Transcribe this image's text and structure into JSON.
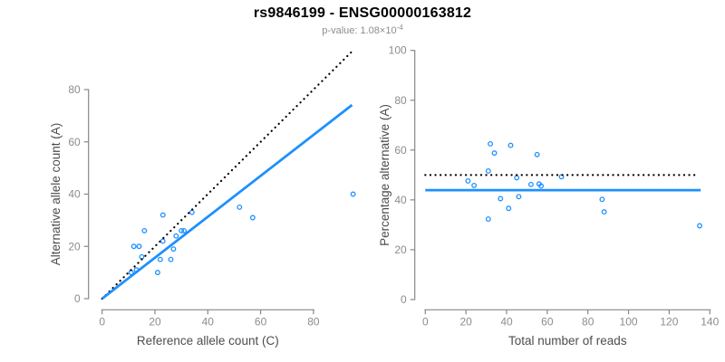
{
  "figure": {
    "title": "rs9846199 - ENSG00000163812",
    "subtitle_prefix": "p-value: 1.08×10",
    "subtitle_exponent": "-4"
  },
  "colors": {
    "accent_blue": "#1E90FF",
    "dotted_black": "#000000",
    "axis_gray": "#878787",
    "tick_label_gray": "#8C8C8C",
    "axis_title_gray": "#4d4d4d",
    "subtitle_gray": "#8C8C8C"
  },
  "chart_data": [
    {
      "type": "scatter",
      "name": "allele-counts",
      "xlabel": "Reference allele count (C)",
      "ylabel": "Alternative allele count (A)",
      "xlim": [
        0,
        96
      ],
      "ylim": [
        0,
        96
      ],
      "xticks": [
        0,
        20,
        40,
        60,
        80
      ],
      "yticks": [
        0,
        20,
        40,
        60,
        80
      ],
      "grid": false,
      "legend": "none",
      "points": [
        [
          11,
          10
        ],
        [
          13,
          11
        ],
        [
          12,
          20
        ],
        [
          14,
          20
        ],
        [
          15,
          16
        ],
        [
          16,
          26
        ],
        [
          21,
          10
        ],
        [
          22,
          15
        ],
        [
          23,
          22
        ],
        [
          23,
          32
        ],
        [
          26,
          15
        ],
        [
          27,
          19
        ],
        [
          28,
          24
        ],
        [
          30,
          26
        ],
        [
          31,
          26
        ],
        [
          34,
          33
        ],
        [
          52,
          35
        ],
        [
          57,
          31
        ],
        [
          95,
          40
        ]
      ],
      "lines": [
        {
          "name": "identity-line",
          "style": "dotted",
          "color": "#000000",
          "from": [
            0,
            0
          ],
          "to": [
            95,
            95
          ]
        },
        {
          "name": "fit-line",
          "style": "solid",
          "color": "#1E90FF",
          "from": [
            0,
            0
          ],
          "to": [
            94.6,
            74.1
          ]
        }
      ]
    },
    {
      "type": "scatter",
      "name": "percentage-vs-reads",
      "xlabel": "Total number of reads",
      "ylabel": "Percentage alternative (A)",
      "xlim": [
        0,
        141
      ],
      "ylim": [
        0,
        100
      ],
      "xticks": [
        0,
        20,
        40,
        60,
        80,
        100,
        120,
        140
      ],
      "yticks": [
        0,
        20,
        40,
        60,
        80,
        100
      ],
      "grid": false,
      "legend": "none",
      "points": [
        [
          21,
          47.6
        ],
        [
          24,
          45.8
        ],
        [
          31,
          51.6
        ],
        [
          31,
          32.3
        ],
        [
          32,
          62.5
        ],
        [
          34,
          58.8
        ],
        [
          37,
          40.5
        ],
        [
          41,
          36.6
        ],
        [
          42,
          61.9
        ],
        [
          45,
          48.9
        ],
        [
          46,
          41.3
        ],
        [
          52,
          46.2
        ],
        [
          55,
          58.2
        ],
        [
          56,
          46.4
        ],
        [
          57,
          45.6
        ],
        [
          67,
          49.3
        ],
        [
          87,
          40.2
        ],
        [
          88,
          35.2
        ],
        [
          135,
          29.6
        ]
      ],
      "lines": [
        {
          "name": "expected-50-line",
          "style": "dotted",
          "color": "#000000",
          "from": [
            0,
            50
          ],
          "to": [
            133,
            50
          ]
        },
        {
          "name": "mean-percentage-line",
          "style": "solid",
          "color": "#1E90FF",
          "from": [
            0,
            43.9
          ],
          "to": [
            135.5,
            43.9
          ]
        }
      ]
    }
  ]
}
